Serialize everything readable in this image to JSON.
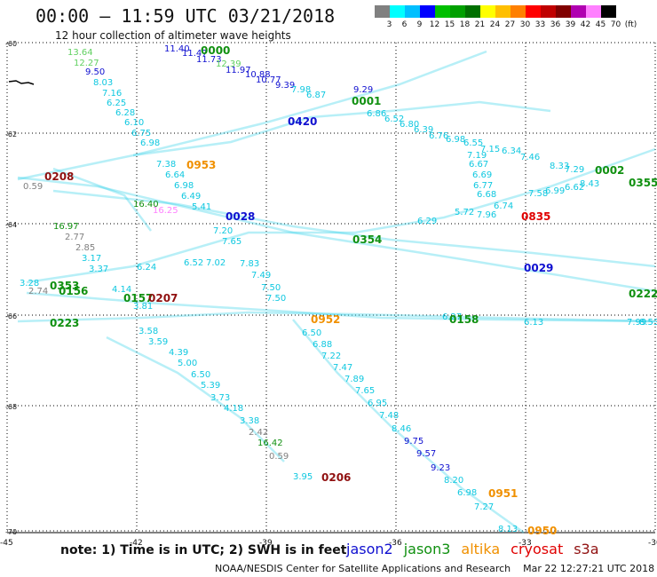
{
  "header": {
    "title": "00:00 – 11:59 UTC 03/21/2018",
    "subtitle": "12 hour collection of altimeter wave heights"
  },
  "scale": {
    "colors": [
      "#808080",
      "#00ffff",
      "#00bfff",
      "#0000ff",
      "#00bf00",
      "#00a000",
      "#007000",
      "#ffff00",
      "#ffbf00",
      "#ff8000",
      "#ff0000",
      "#c00000",
      "#800000",
      "#b000b0",
      "#ff80ff",
      "#000000"
    ],
    "labels": [
      "3",
      "6",
      "9",
      "12",
      "15",
      "18",
      "21",
      "24",
      "27",
      "30",
      "33",
      "36",
      "39",
      "42",
      "45",
      "70",
      "(ft)"
    ]
  },
  "axes": {
    "lat_labels": [
      "-60",
      "-62",
      "-64",
      "-66",
      "-68",
      "-70"
    ],
    "lon_labels": [
      "-45",
      "-42",
      "-39",
      "-36",
      "-33",
      "-30"
    ]
  },
  "note": "note: 1) Time is in UTC; 2) SWH is in feet",
  "legend": [
    {
      "name": "jason2",
      "color": "#1010d0"
    },
    {
      "name": "jason3",
      "color": "#109010"
    },
    {
      "name": "altika",
      "color": "#f09000"
    },
    {
      "name": "cryosat",
      "color": "#e00000"
    },
    {
      "name": "s3a",
      "color": "#901010"
    }
  ],
  "footer": "NOAA/NESDIS Center for Satellite Applications and Research    Mar 22 12:27:21 UTC 2018",
  "time_labels": [
    {
      "text": "0000",
      "color": "#109010"
    },
    {
      "text": "0001",
      "color": "#109010"
    },
    {
      "text": "0420",
      "color": "#1010d0"
    },
    {
      "text": "0953",
      "color": "#f09000"
    },
    {
      "text": "0208",
      "color": "#901010"
    },
    {
      "text": "0028",
      "color": "#1010d0"
    },
    {
      "text": "0354",
      "color": "#109010"
    },
    {
      "text": "0002",
      "color": "#109010"
    },
    {
      "text": "0355",
      "color": "#109010"
    },
    {
      "text": "0835",
      "color": "#e00000"
    },
    {
      "text": "0029",
      "color": "#1010d0"
    },
    {
      "text": "0353",
      "color": "#109010"
    },
    {
      "text": "0156",
      "color": "#109010"
    },
    {
      "text": "0157",
      "color": "#109010"
    },
    {
      "text": "0207",
      "color": "#901010"
    },
    {
      "text": "0223",
      "color": "#109010"
    },
    {
      "text": "0952",
      "color": "#f09000"
    },
    {
      "text": "0158",
      "color": "#109010"
    },
    {
      "text": "0222",
      "color": "#109010"
    },
    {
      "text": "0206",
      "color": "#901010"
    },
    {
      "text": "0951",
      "color": "#f09000"
    },
    {
      "text": "0950",
      "color": "#f09000"
    }
  ],
  "wave_heights": [
    {
      "text": "13.64",
      "color": "#60d060"
    },
    {
      "text": "12.27",
      "color": "#60d060"
    },
    {
      "text": "9.50",
      "color": "#1010d0"
    },
    {
      "text": "8.03",
      "color": "#10c8e0"
    },
    {
      "text": "7.16",
      "color": "#10c8e0"
    },
    {
      "text": "6.25",
      "color": "#10c8e0"
    },
    {
      "text": "6.28",
      "color": "#10c8e0"
    },
    {
      "text": "6.10",
      "color": "#10c8e0"
    },
    {
      "text": "6.75",
      "color": "#10c8e0"
    },
    {
      "text": "6.98",
      "color": "#10c8e0"
    },
    {
      "text": "7.38",
      "color": "#10c8e0"
    },
    {
      "text": "6.64",
      "color": "#10c8e0"
    },
    {
      "text": "6.98",
      "color": "#10c8e0"
    },
    {
      "text": "6.49",
      "color": "#10c8e0"
    },
    {
      "text": "5.41",
      "color": "#10c8e0"
    },
    {
      "text": "7.20",
      "color": "#10c8e0"
    },
    {
      "text": "7.65",
      "color": "#10c8e0"
    },
    {
      "text": "7.02",
      "color": "#10c8e0"
    },
    {
      "text": "7.83",
      "color": "#10c8e0"
    },
    {
      "text": "7.49",
      "color": "#10c8e0"
    },
    {
      "text": "7.50",
      "color": "#10c8e0"
    },
    {
      "text": "7.50",
      "color": "#10c8e0"
    },
    {
      "text": "6.52",
      "color": "#10c8e0"
    },
    {
      "text": "11.40",
      "color": "#1010d0"
    },
    {
      "text": "11.47",
      "color": "#1010d0"
    },
    {
      "text": "11.73",
      "color": "#1010d0"
    },
    {
      "text": "12.39",
      "color": "#60d060"
    },
    {
      "text": "11.97",
      "color": "#1010d0"
    },
    {
      "text": "10.88",
      "color": "#1010d0"
    },
    {
      "text": "10.77",
      "color": "#1010d0"
    },
    {
      "text": "9.39",
      "color": "#1010d0"
    },
    {
      "text": "7.98",
      "color": "#10c8e0"
    },
    {
      "text": "6.87",
      "color": "#10c8e0"
    },
    {
      "text": "9.29",
      "color": "#1010d0"
    },
    {
      "text": "6.86",
      "color": "#10c8e0"
    },
    {
      "text": "6.52",
      "color": "#10c8e0"
    },
    {
      "text": "6.80",
      "color": "#10c8e0"
    },
    {
      "text": "6.39",
      "color": "#10c8e0"
    },
    {
      "text": "6.76",
      "color": "#10c8e0"
    },
    {
      "text": "6.98",
      "color": "#10c8e0"
    },
    {
      "text": "6.55",
      "color": "#10c8e0"
    },
    {
      "text": "7.15",
      "color": "#10c8e0"
    },
    {
      "text": "7.19",
      "color": "#10c8e0"
    },
    {
      "text": "6.34",
      "color": "#10c8e0"
    },
    {
      "text": "6.67",
      "color": "#10c8e0"
    },
    {
      "text": "6.69",
      "color": "#10c8e0"
    },
    {
      "text": "6.77",
      "color": "#10c8e0"
    },
    {
      "text": "6.68",
      "color": "#10c8e0"
    },
    {
      "text": "7.96",
      "color": "#10c8e0"
    },
    {
      "text": "6.74",
      "color": "#10c8e0"
    },
    {
      "text": "7.46",
      "color": "#10c8e0"
    },
    {
      "text": "8.33",
      "color": "#10c8e0"
    },
    {
      "text": "7.29",
      "color": "#10c8e0"
    },
    {
      "text": "7.58",
      "color": "#10c8e0"
    },
    {
      "text": "6.99",
      "color": "#10c8e0"
    },
    {
      "text": "6.62",
      "color": "#10c8e0"
    },
    {
      "text": "8.43",
      "color": "#10c8e0"
    },
    {
      "text": "0.59",
      "color": "#808080"
    },
    {
      "text": "16.97",
      "color": "#109010"
    },
    {
      "text": "2.77",
      "color": "#808080"
    },
    {
      "text": "2.85",
      "color": "#808080"
    },
    {
      "text": "3.17",
      "color": "#10c8e0"
    },
    {
      "text": "3.37",
      "color": "#10c8e0"
    },
    {
      "text": "16.40",
      "color": "#109010"
    },
    {
      "text": "16.25",
      "color": "#ff80ff"
    },
    {
      "text": "3.28",
      "color": "#10c8e0"
    },
    {
      "text": "2.74",
      "color": "#808080"
    },
    {
      "text": "4.14",
      "color": "#10c8e0"
    },
    {
      "text": "3.81",
      "color": "#10c8e0"
    },
    {
      "text": "3.58",
      "color": "#10c8e0"
    },
    {
      "text": "3.59",
      "color": "#10c8e0"
    },
    {
      "text": "4.39",
      "color": "#10c8e0"
    },
    {
      "text": "5.00",
      "color": "#10c8e0"
    },
    {
      "text": "6.50",
      "color": "#10c8e0"
    },
    {
      "text": "5.39",
      "color": "#10c8e0"
    },
    {
      "text": "3.73",
      "color": "#10c8e0"
    },
    {
      "text": "4.18",
      "color": "#10c8e0"
    },
    {
      "text": "3.38",
      "color": "#10c8e0"
    },
    {
      "text": "2.42",
      "color": "#808080"
    },
    {
      "text": "16.42",
      "color": "#109010"
    },
    {
      "text": "0.59",
      "color": "#808080"
    },
    {
      "text": "3.95",
      "color": "#10c8e0"
    },
    {
      "text": "6.50",
      "color": "#10c8e0"
    },
    {
      "text": "6.88",
      "color": "#10c8e0"
    },
    {
      "text": "7.22",
      "color": "#10c8e0"
    },
    {
      "text": "7.47",
      "color": "#10c8e0"
    },
    {
      "text": "7.89",
      "color": "#10c8e0"
    },
    {
      "text": "7.65",
      "color": "#10c8e0"
    },
    {
      "text": "6.95",
      "color": "#10c8e0"
    },
    {
      "text": "7.48",
      "color": "#10c8e0"
    },
    {
      "text": "8.46",
      "color": "#10c8e0"
    },
    {
      "text": "9.75",
      "color": "#1010d0"
    },
    {
      "text": "9.57",
      "color": "#1010d0"
    },
    {
      "text": "9.23",
      "color": "#1010d0"
    },
    {
      "text": "8.20",
      "color": "#10c8e0"
    },
    {
      "text": "6.98",
      "color": "#10c8e0"
    },
    {
      "text": "7.27",
      "color": "#10c8e0"
    },
    {
      "text": "8.13",
      "color": "#10c8e0"
    },
    {
      "text": "7.99",
      "color": "#10c8e0"
    },
    {
      "text": "8.53",
      "color": "#10c8e0"
    },
    {
      "text": "6.13",
      "color": "#10c8e0"
    },
    {
      "text": "6.27",
      "color": "#10c8e0"
    },
    {
      "text": "5.72",
      "color": "#10c8e0"
    },
    {
      "text": "6.29",
      "color": "#10c8e0"
    },
    {
      "text": "6.24",
      "color": "#10c8e0"
    },
    {
      "text": "5.24",
      "color": "#10c8e0"
    }
  ]
}
